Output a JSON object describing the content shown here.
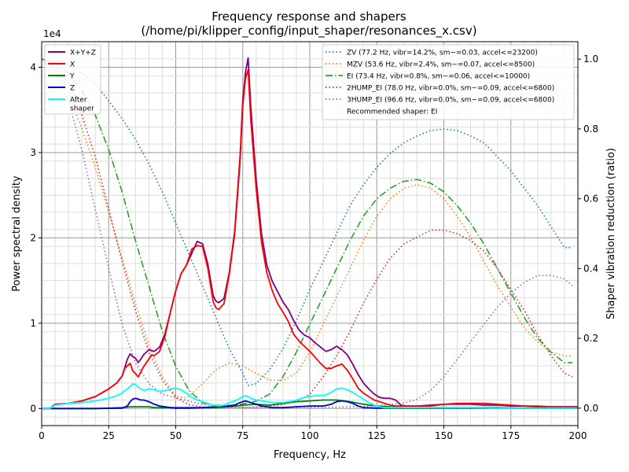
{
  "chart_data": {
    "type": "line",
    "title": "Frequency response and shapers",
    "subtitle": "(/home/pi/klipper_config/input_shaper/resonances_x.csv)",
    "xlabel": "Frequency, Hz",
    "ylabel": "Power spectral density",
    "y2label": "Shaper vibration reduction (ratio)",
    "y_offset_label": "1e4",
    "xlim": [
      0,
      200
    ],
    "ylim": [
      -2000,
      43000
    ],
    "y2lim": [
      -0.05,
      1.05
    ],
    "xticks": [
      0,
      25,
      50,
      75,
      100,
      125,
      150,
      175,
      200
    ],
    "yticks": [
      0,
      10000,
      20000,
      30000,
      40000
    ],
    "ytick_labels": [
      "0",
      "1",
      "2",
      "3",
      "4"
    ],
    "y2ticks": [
      0.0,
      0.2,
      0.4,
      0.6,
      0.8,
      1.0
    ],
    "y2tick_labels": [
      "0.0",
      "0.2",
      "0.4",
      "0.6",
      "0.8",
      "1.0"
    ],
    "grid": true,
    "psd_legend_position": "upper-left",
    "shaper_legend_position": "upper-right",
    "psd_series": [
      {
        "name": "X+Y+Z",
        "color": "#800080",
        "style": "solid",
        "x": [
          0,
          3,
          5,
          10,
          15,
          20,
          25,
          28,
          30,
          31,
          32,
          33,
          34,
          35,
          36,
          37,
          38,
          40,
          41,
          42,
          44,
          46,
          48,
          50,
          52,
          54,
          56,
          58,
          60,
          62,
          64,
          65,
          66,
          68,
          70,
          72,
          74,
          75,
          76,
          77,
          78,
          80,
          82,
          84,
          86,
          88,
          90,
          92,
          94,
          96,
          98,
          100,
          102,
          104,
          106,
          108,
          110,
          112,
          114,
          116,
          118,
          120,
          122,
          124,
          126,
          128,
          130,
          132,
          134,
          136,
          140,
          145,
          150,
          155,
          160,
          165,
          170,
          175,
          180,
          185,
          190,
          195,
          200
        ],
        "values": [
          0,
          0,
          500,
          600,
          900,
          1400,
          2300,
          3000,
          3800,
          4800,
          5800,
          6400,
          6100,
          5900,
          5400,
          5800,
          6300,
          6900,
          6800,
          6700,
          7200,
          8800,
          11300,
          13800,
          15800,
          16800,
          18200,
          19600,
          19300,
          16900,
          13200,
          12600,
          12400,
          12900,
          16000,
          20800,
          29500,
          36200,
          39400,
          41100,
          35300,
          26900,
          20500,
          16800,
          14900,
          13700,
          12500,
          11600,
          10300,
          9200,
          8600,
          8300,
          7700,
          7200,
          6700,
          6900,
          7300,
          6900,
          6300,
          5200,
          4000,
          3000,
          2300,
          1700,
          1300,
          1200,
          1200,
          1000,
          400,
          300,
          300,
          400,
          500,
          500,
          500,
          400,
          400,
          300,
          300,
          200,
          200,
          200,
          200
        ]
      },
      {
        "name": "X",
        "color": "#ff0000",
        "style": "solid",
        "x": [
          0,
          3,
          5,
          10,
          15,
          20,
          25,
          28,
          30,
          31,
          32,
          33,
          34,
          35,
          36,
          37,
          38,
          40,
          41,
          42,
          44,
          46,
          48,
          50,
          52,
          54,
          56,
          58,
          60,
          62,
          64,
          65,
          66,
          68,
          70,
          72,
          74,
          75,
          76,
          77,
          78,
          80,
          82,
          84,
          86,
          88,
          90,
          92,
          94,
          96,
          98,
          100,
          102,
          104,
          106,
          108,
          110,
          112,
          114,
          116,
          118,
          120,
          122,
          124,
          126,
          128,
          130,
          132,
          134,
          136,
          140,
          145,
          150,
          155,
          160,
          165,
          170,
          175,
          180,
          185,
          190,
          195,
          200
        ],
        "values": [
          0,
          0,
          500,
          600,
          900,
          1400,
          2300,
          3000,
          3800,
          4700,
          5000,
          5300,
          4400,
          4100,
          3700,
          4300,
          4900,
          5800,
          6300,
          6200,
          6700,
          8500,
          11300,
          13800,
          15800,
          16800,
          18700,
          19100,
          19000,
          16400,
          12500,
          11800,
          11600,
          12300,
          15800,
          20500,
          28900,
          35500,
          38700,
          39700,
          33800,
          25800,
          19500,
          15900,
          13800,
          12300,
          11300,
          10200,
          8700,
          7900,
          7300,
          6700,
          6000,
          5300,
          4700,
          4700,
          5000,
          5200,
          4500,
          3500,
          2400,
          1800,
          1400,
          1000,
          800,
          600,
          400,
          300,
          300,
          300,
          300,
          300,
          500,
          600,
          600,
          600,
          500,
          400,
          300,
          300,
          200,
          200,
          200
        ]
      },
      {
        "name": "Y",
        "color": "#008000",
        "style": "solid",
        "x": [
          0,
          10,
          20,
          30,
          33,
          35,
          37,
          40,
          42,
          45,
          50,
          55,
          60,
          65,
          70,
          75,
          80,
          85,
          90,
          95,
          100,
          105,
          110,
          115,
          120,
          125,
          130,
          135,
          140,
          150,
          160,
          170,
          180,
          190,
          200
        ],
        "values": [
          0,
          0,
          0,
          100,
          200,
          200,
          200,
          200,
          100,
          100,
          100,
          100,
          100,
          100,
          200,
          400,
          500,
          400,
          600,
          800,
          900,
          1000,
          1000,
          800,
          500,
          300,
          200,
          100,
          100,
          100,
          100,
          100,
          50,
          50,
          50
        ]
      },
      {
        "name": "Z",
        "color": "#0000cd",
        "style": "solid",
        "x": [
          0,
          10,
          20,
          30,
          32,
          33,
          34,
          35,
          36,
          37,
          38,
          40,
          42,
          44,
          46,
          48,
          50,
          55,
          60,
          65,
          70,
          72,
          74,
          75,
          76,
          77,
          78,
          80,
          82,
          84,
          86,
          88,
          90,
          95,
          100,
          105,
          108,
          110,
          112,
          114,
          116,
          118,
          120,
          125,
          130,
          135,
          140,
          150,
          160,
          170,
          180,
          190,
          200
        ],
        "values": [
          0,
          0,
          0,
          50,
          300,
          800,
          1100,
          1200,
          1100,
          1000,
          1000,
          800,
          500,
          300,
          200,
          100,
          50,
          50,
          100,
          200,
          300,
          400,
          700,
          800,
          900,
          800,
          700,
          500,
          300,
          200,
          100,
          100,
          100,
          200,
          300,
          300,
          500,
          800,
          900,
          800,
          600,
          300,
          100,
          50,
          50,
          50,
          50,
          50,
          50,
          50,
          50,
          50,
          50
        ]
      },
      {
        "name": "After\nshaper",
        "color": "#00ffff",
        "style": "solid",
        "x": [
          0,
          3,
          5,
          10,
          15,
          20,
          25,
          28,
          30,
          31,
          32,
          33,
          34,
          35,
          36,
          37,
          38,
          40,
          42,
          44,
          46,
          48,
          50,
          52,
          54,
          56,
          58,
          60,
          62,
          64,
          66,
          68,
          70,
          72,
          74,
          75,
          76,
          77,
          78,
          80,
          82,
          84,
          86,
          88,
          90,
          92,
          94,
          96,
          98,
          100,
          102,
          104,
          106,
          108,
          110,
          112,
          114,
          116,
          118,
          120,
          122,
          124,
          126,
          128,
          130,
          135,
          140,
          150,
          160,
          170,
          180,
          190,
          200
        ],
        "values": [
          0,
          0,
          400,
          600,
          700,
          900,
          1200,
          1500,
          1800,
          2100,
          2300,
          2600,
          2900,
          2800,
          2500,
          2300,
          2100,
          2300,
          2200,
          2000,
          2100,
          2300,
          2400,
          2200,
          1800,
          1300,
          1000,
          800,
          600,
          400,
          300,
          400,
          700,
          900,
          1200,
          1400,
          1500,
          1400,
          1200,
          1000,
          900,
          800,
          700,
          700,
          700,
          800,
          900,
          1100,
          1300,
          1400,
          1500,
          1500,
          1600,
          1900,
          2300,
          2400,
          2200,
          1900,
          1500,
          1100,
          700,
          400,
          200,
          100,
          100,
          100,
          100,
          100,
          100,
          50,
          50,
          50,
          50
        ]
      }
    ],
    "shaper_series": [
      {
        "name": "ZV (77.2 Hz, vibr=14.2%, sm~=0.03, accel<=23200)",
        "color": "#1f77b4",
        "style": "dotted",
        "x": [
          0,
          5,
          10,
          15,
          20,
          25,
          30,
          35,
          40,
          45,
          50,
          55,
          60,
          65,
          70,
          75,
          77,
          80,
          85,
          90,
          95,
          100,
          105,
          110,
          115,
          120,
          125,
          130,
          135,
          140,
          145,
          150,
          155,
          160,
          165,
          170,
          175,
          180,
          185,
          190,
          195,
          198
        ],
        "values": [
          1.0,
          0.99,
          0.985,
          0.96,
          0.93,
          0.88,
          0.83,
          0.77,
          0.7,
          0.62,
          0.53,
          0.44,
          0.35,
          0.26,
          0.17,
          0.1,
          0.065,
          0.07,
          0.11,
          0.17,
          0.25,
          0.34,
          0.42,
          0.5,
          0.58,
          0.64,
          0.69,
          0.73,
          0.76,
          0.78,
          0.795,
          0.8,
          0.795,
          0.78,
          0.76,
          0.72,
          0.68,
          0.63,
          0.58,
          0.52,
          0.46,
          0.46
        ]
      },
      {
        "name": "MZV (53.6 Hz, vibr=2.4%, sm~=0.07, accel<=8500)",
        "color": "#ff7f0e",
        "style": "dotted",
        "x": [
          0,
          5,
          10,
          15,
          20,
          25,
          30,
          35,
          40,
          45,
          50,
          53.6,
          55,
          60,
          65,
          70,
          75,
          80,
          85,
          90,
          95,
          100,
          105,
          110,
          115,
          120,
          125,
          130,
          135,
          140,
          145,
          150,
          155,
          160,
          165,
          170,
          175,
          180,
          185,
          190,
          195,
          198
        ],
        "values": [
          1.0,
          0.97,
          0.9,
          0.8,
          0.69,
          0.56,
          0.43,
          0.3,
          0.18,
          0.09,
          0.035,
          0.03,
          0.035,
          0.07,
          0.11,
          0.13,
          0.12,
          0.1,
          0.08,
          0.08,
          0.1,
          0.16,
          0.24,
          0.32,
          0.4,
          0.48,
          0.55,
          0.6,
          0.63,
          0.64,
          0.63,
          0.6,
          0.55,
          0.49,
          0.42,
          0.35,
          0.29,
          0.23,
          0.19,
          0.16,
          0.15,
          0.15
        ]
      },
      {
        "name": "EI (73.4 Hz, vibr=0.8%, sm~=0.06, accel<=10000)",
        "color": "#2ca02c",
        "style": "dashdot",
        "x": [
          0,
          5,
          10,
          15,
          20,
          25,
          30,
          35,
          40,
          45,
          50,
          55,
          60,
          65,
          70,
          73.4,
          75,
          80,
          85,
          90,
          95,
          100,
          105,
          110,
          115,
          120,
          125,
          130,
          135,
          140,
          145,
          150,
          155,
          160,
          165,
          170,
          175,
          180,
          185,
          190,
          195,
          198
        ],
        "values": [
          1.0,
          0.99,
          0.96,
          0.91,
          0.84,
          0.74,
          0.62,
          0.48,
          0.35,
          0.22,
          0.12,
          0.05,
          0.015,
          0.008,
          0.008,
          0.01,
          0.012,
          0.02,
          0.04,
          0.09,
          0.16,
          0.24,
          0.32,
          0.4,
          0.48,
          0.55,
          0.6,
          0.63,
          0.65,
          0.655,
          0.645,
          0.62,
          0.58,
          0.53,
          0.47,
          0.4,
          0.33,
          0.26,
          0.2,
          0.16,
          0.13,
          0.13
        ]
      },
      {
        "name": "2HUMP_EI (78.0 Hz, vibr=0.0%, sm~=0.09, accel<=6800)",
        "color": "#d62728",
        "style": "dotted",
        "x": [
          0,
          5,
          10,
          15,
          20,
          25,
          30,
          35,
          40,
          45,
          50,
          55,
          60,
          65,
          70,
          75,
          78,
          80,
          85,
          90,
          95,
          100,
          105,
          110,
          115,
          120,
          125,
          130,
          135,
          140,
          145,
          150,
          155,
          160,
          165,
          170,
          175,
          180,
          185,
          190,
          195,
          198
        ],
        "values": [
          1.0,
          0.98,
          0.93,
          0.84,
          0.72,
          0.57,
          0.42,
          0.28,
          0.16,
          0.08,
          0.03,
          0.01,
          0.003,
          0.002,
          0.002,
          0.002,
          0.002,
          0.003,
          0.006,
          0.01,
          0.02,
          0.04,
          0.09,
          0.15,
          0.22,
          0.3,
          0.37,
          0.43,
          0.47,
          0.49,
          0.51,
          0.51,
          0.5,
          0.48,
          0.45,
          0.4,
          0.34,
          0.28,
          0.21,
          0.15,
          0.1,
          0.09
        ]
      },
      {
        "name": "3HUMP_EI (96.6 Hz, vibr=0.0%, sm~=0.09, accel<=6800)",
        "color": "#9467bd",
        "style": "dotted",
        "x": [
          0,
          5,
          10,
          15,
          20,
          25,
          30,
          35,
          40,
          45,
          50,
          55,
          60,
          65,
          70,
          75,
          80,
          85,
          90,
          95,
          100,
          105,
          110,
          115,
          120,
          125,
          130,
          135,
          140,
          145,
          150,
          155,
          160,
          165,
          170,
          175,
          180,
          185,
          190,
          195,
          198
        ],
        "values": [
          1.0,
          0.97,
          0.88,
          0.74,
          0.57,
          0.4,
          0.24,
          0.13,
          0.07,
          0.04,
          0.03,
          0.02,
          0.01,
          0.005,
          0.004,
          0.003,
          0.002,
          0.002,
          0.002,
          0.002,
          0.002,
          0.002,
          0.003,
          0.004,
          0.005,
          0.007,
          0.01,
          0.015,
          0.025,
          0.05,
          0.09,
          0.14,
          0.19,
          0.24,
          0.29,
          0.33,
          0.36,
          0.38,
          0.38,
          0.37,
          0.35
        ]
      }
    ],
    "recommended_text": "Recommended shaper: EI"
  }
}
